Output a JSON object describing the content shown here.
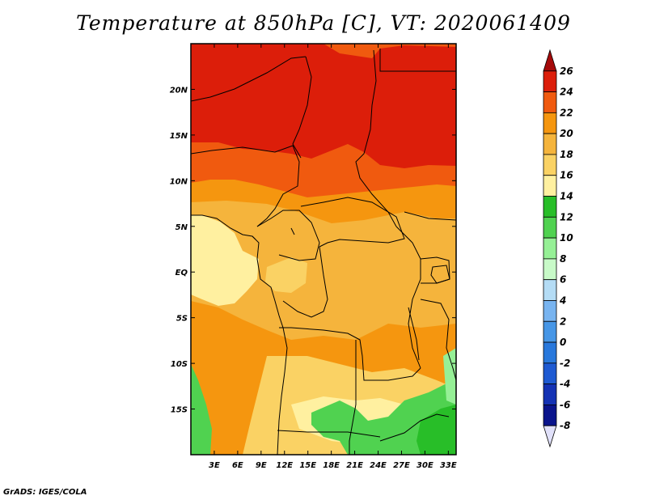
{
  "title": "Temperature at 850hPa [C], VT: 2020061409",
  "credit": "GrADS: IGES/COLA",
  "map": {
    "region": "Central Africa",
    "lon_range": [
      0,
      34
    ],
    "lat_range": [
      -20,
      25
    ],
    "lat_ticks": [
      {
        "lat": 20,
        "label": "20N"
      },
      {
        "lat": 15,
        "label": "15N"
      },
      {
        "lat": 10,
        "label": "10N"
      },
      {
        "lat": 5,
        "label": "5N"
      },
      {
        "lat": 0,
        "label": "EQ"
      },
      {
        "lat": -5,
        "label": "5S"
      },
      {
        "lat": -10,
        "label": "10S"
      },
      {
        "lat": -15,
        "label": "15S"
      }
    ],
    "lon_ticks": [
      {
        "lon": 3,
        "label": "3E"
      },
      {
        "lon": 6,
        "label": "6E"
      },
      {
        "lon": 9,
        "label": "9E"
      },
      {
        "lon": 12,
        "label": "12E"
      },
      {
        "lon": 15,
        "label": "15E"
      },
      {
        "lon": 18,
        "label": "18E"
      },
      {
        "lon": 21,
        "label": "21E"
      },
      {
        "lon": 24,
        "label": "24E"
      },
      {
        "lon": 27,
        "label": "27E"
      },
      {
        "lon": 30,
        "label": "30E"
      },
      {
        "lon": 33,
        "label": "33E"
      }
    ]
  },
  "colorbar": {
    "bins": [
      {
        "label": "26",
        "color": "#a50a0a"
      },
      {
        "label": "24",
        "color": "#dc1e0a"
      },
      {
        "label": "22",
        "color": "#f05a0f"
      },
      {
        "label": "20",
        "color": "#f5960f"
      },
      {
        "label": "18",
        "color": "#f5b43c"
      },
      {
        "label": "16",
        "color": "#fad264"
      },
      {
        "label": "14",
        "color": "#fff0a0"
      },
      {
        "label": "12",
        "color": "#28be28"
      },
      {
        "label": "10",
        "color": "#50d250"
      },
      {
        "label": "8",
        "color": "#96f096"
      },
      {
        "label": "6",
        "color": "#c8fac8"
      },
      {
        "label": "4",
        "color": "#b4dcf5"
      },
      {
        "label": "2",
        "color": "#78b4f0"
      },
      {
        "label": "0",
        "color": "#4696e6"
      },
      {
        "label": "-2",
        "color": "#2878dc"
      },
      {
        "label": "-4",
        "color": "#1e5ad2"
      },
      {
        "label": "-6",
        "color": "#1432b4"
      },
      {
        "label": "-8",
        "color": "#0a148c"
      }
    ],
    "bottom_extension_color": "#e1e1fa"
  },
  "field": {
    "colors": {
      "very_hot": "#dc1e0a",
      "hot": "#f05a0f",
      "warm": "#f5960f",
      "mild": "#f5b43c",
      "cool": "#fad264",
      "pale": "#fff0a0",
      "green": "#50d250",
      "dark_green": "#28be28",
      "light_green": "#96f096"
    }
  }
}
